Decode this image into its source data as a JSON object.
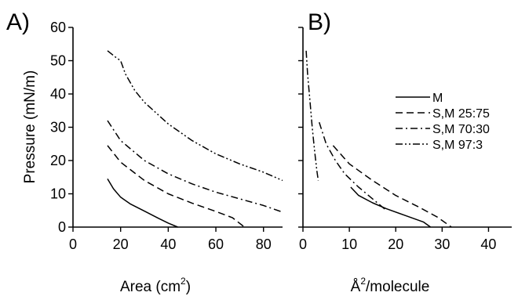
{
  "chart_data": [
    {
      "panel_label": "A)",
      "type": "line",
      "xlabel": "Area (cm",
      "xlabel_sup": "2",
      "xlabel_tail": ")",
      "ylabel": "Pressure (mN/m)",
      "xlim": [
        0,
        88
      ],
      "ylim": [
        0,
        60
      ],
      "xticks": [
        "0",
        "20",
        "40",
        "60",
        "80"
      ],
      "yticks": [
        "0",
        "10",
        "20",
        "30",
        "40",
        "50",
        "60"
      ],
      "series": [
        {
          "name": "M",
          "dash": "solid",
          "points": [
            [
              14.5,
              14.5
            ],
            [
              17,
              11.5
            ],
            [
              20,
              9
            ],
            [
              24,
              7
            ],
            [
              30,
              4.8
            ],
            [
              36,
              2.6
            ],
            [
              40,
              1.2
            ],
            [
              44,
              0
            ]
          ]
        },
        {
          "name": "S,M 25:75",
          "dash": "dash",
          "points": [
            [
              14.5,
              24.5
            ],
            [
              20,
              19.5
            ],
            [
              30,
              14
            ],
            [
              40,
              10
            ],
            [
              50,
              7.2
            ],
            [
              60,
              4.7
            ],
            [
              67,
              2.8
            ],
            [
              72,
              0
            ]
          ]
        },
        {
          "name": "S,M 70:30",
          "dash": "dashdot",
          "points": [
            [
              14.5,
              32
            ],
            [
              20,
              26
            ],
            [
              30,
              20
            ],
            [
              40,
              16
            ],
            [
              50,
              13
            ],
            [
              60,
              10.5
            ],
            [
              70,
              8.5
            ],
            [
              80,
              6.5
            ],
            [
              88,
              4.5
            ]
          ]
        },
        {
          "name": "S,M 97:3",
          "dash": "dashdotdot",
          "points": [
            [
              14.5,
              53
            ],
            [
              18,
              51
            ],
            [
              20,
              50
            ],
            [
              22,
              46
            ],
            [
              26,
              41
            ],
            [
              30,
              37.5
            ],
            [
              40,
              31
            ],
            [
              50,
              26
            ],
            [
              60,
              22
            ],
            [
              70,
              19
            ],
            [
              80,
              16.5
            ],
            [
              88,
              14
            ]
          ]
        }
      ]
    },
    {
      "panel_label": "B)",
      "type": "line",
      "xlabel": "/molecule",
      "xlabel_prefix": "Å",
      "xlabel_sup": "2",
      "ylabel": "",
      "xlim": [
        0,
        45
      ],
      "ylim": [
        0,
        60
      ],
      "xticks": [
        "0",
        "10",
        "20",
        "30",
        "40"
      ],
      "legend_position": "right",
      "series": [
        {
          "name": "M",
          "dash": "solid",
          "points": [
            [
              10.3,
              12
            ],
            [
              12,
              9.5
            ],
            [
              15,
              7.3
            ],
            [
              18,
              5.5
            ],
            [
              22,
              3.5
            ],
            [
              26,
              1.5
            ],
            [
              27.5,
              0
            ]
          ]
        },
        {
          "name": "S,M 25:75",
          "dash": "dash",
          "points": [
            [
              6.5,
              24.5
            ],
            [
              10,
              19
            ],
            [
              15,
              14
            ],
            [
              20,
              9.5
            ],
            [
              25,
              6
            ],
            [
              29,
              3
            ],
            [
              32,
              0
            ]
          ]
        },
        {
          "name": "S,M 70:30",
          "dash": "dashdot",
          "points": [
            [
              3.5,
              31.5
            ],
            [
              5,
              25
            ],
            [
              7,
              20
            ],
            [
              9,
              16
            ],
            [
              12,
              12
            ],
            [
              15,
              8.5
            ],
            [
              18,
              5
            ]
          ]
        },
        {
          "name": "S,M 97:3",
          "dash": "dashdotdot",
          "points": [
            [
              0.7,
              53
            ],
            [
              1,
              46
            ],
            [
              1.5,
              38
            ],
            [
              2,
              30
            ],
            [
              2.5,
              23
            ],
            [
              3,
              17
            ],
            [
              3.3,
              14
            ]
          ]
        }
      ]
    }
  ]
}
